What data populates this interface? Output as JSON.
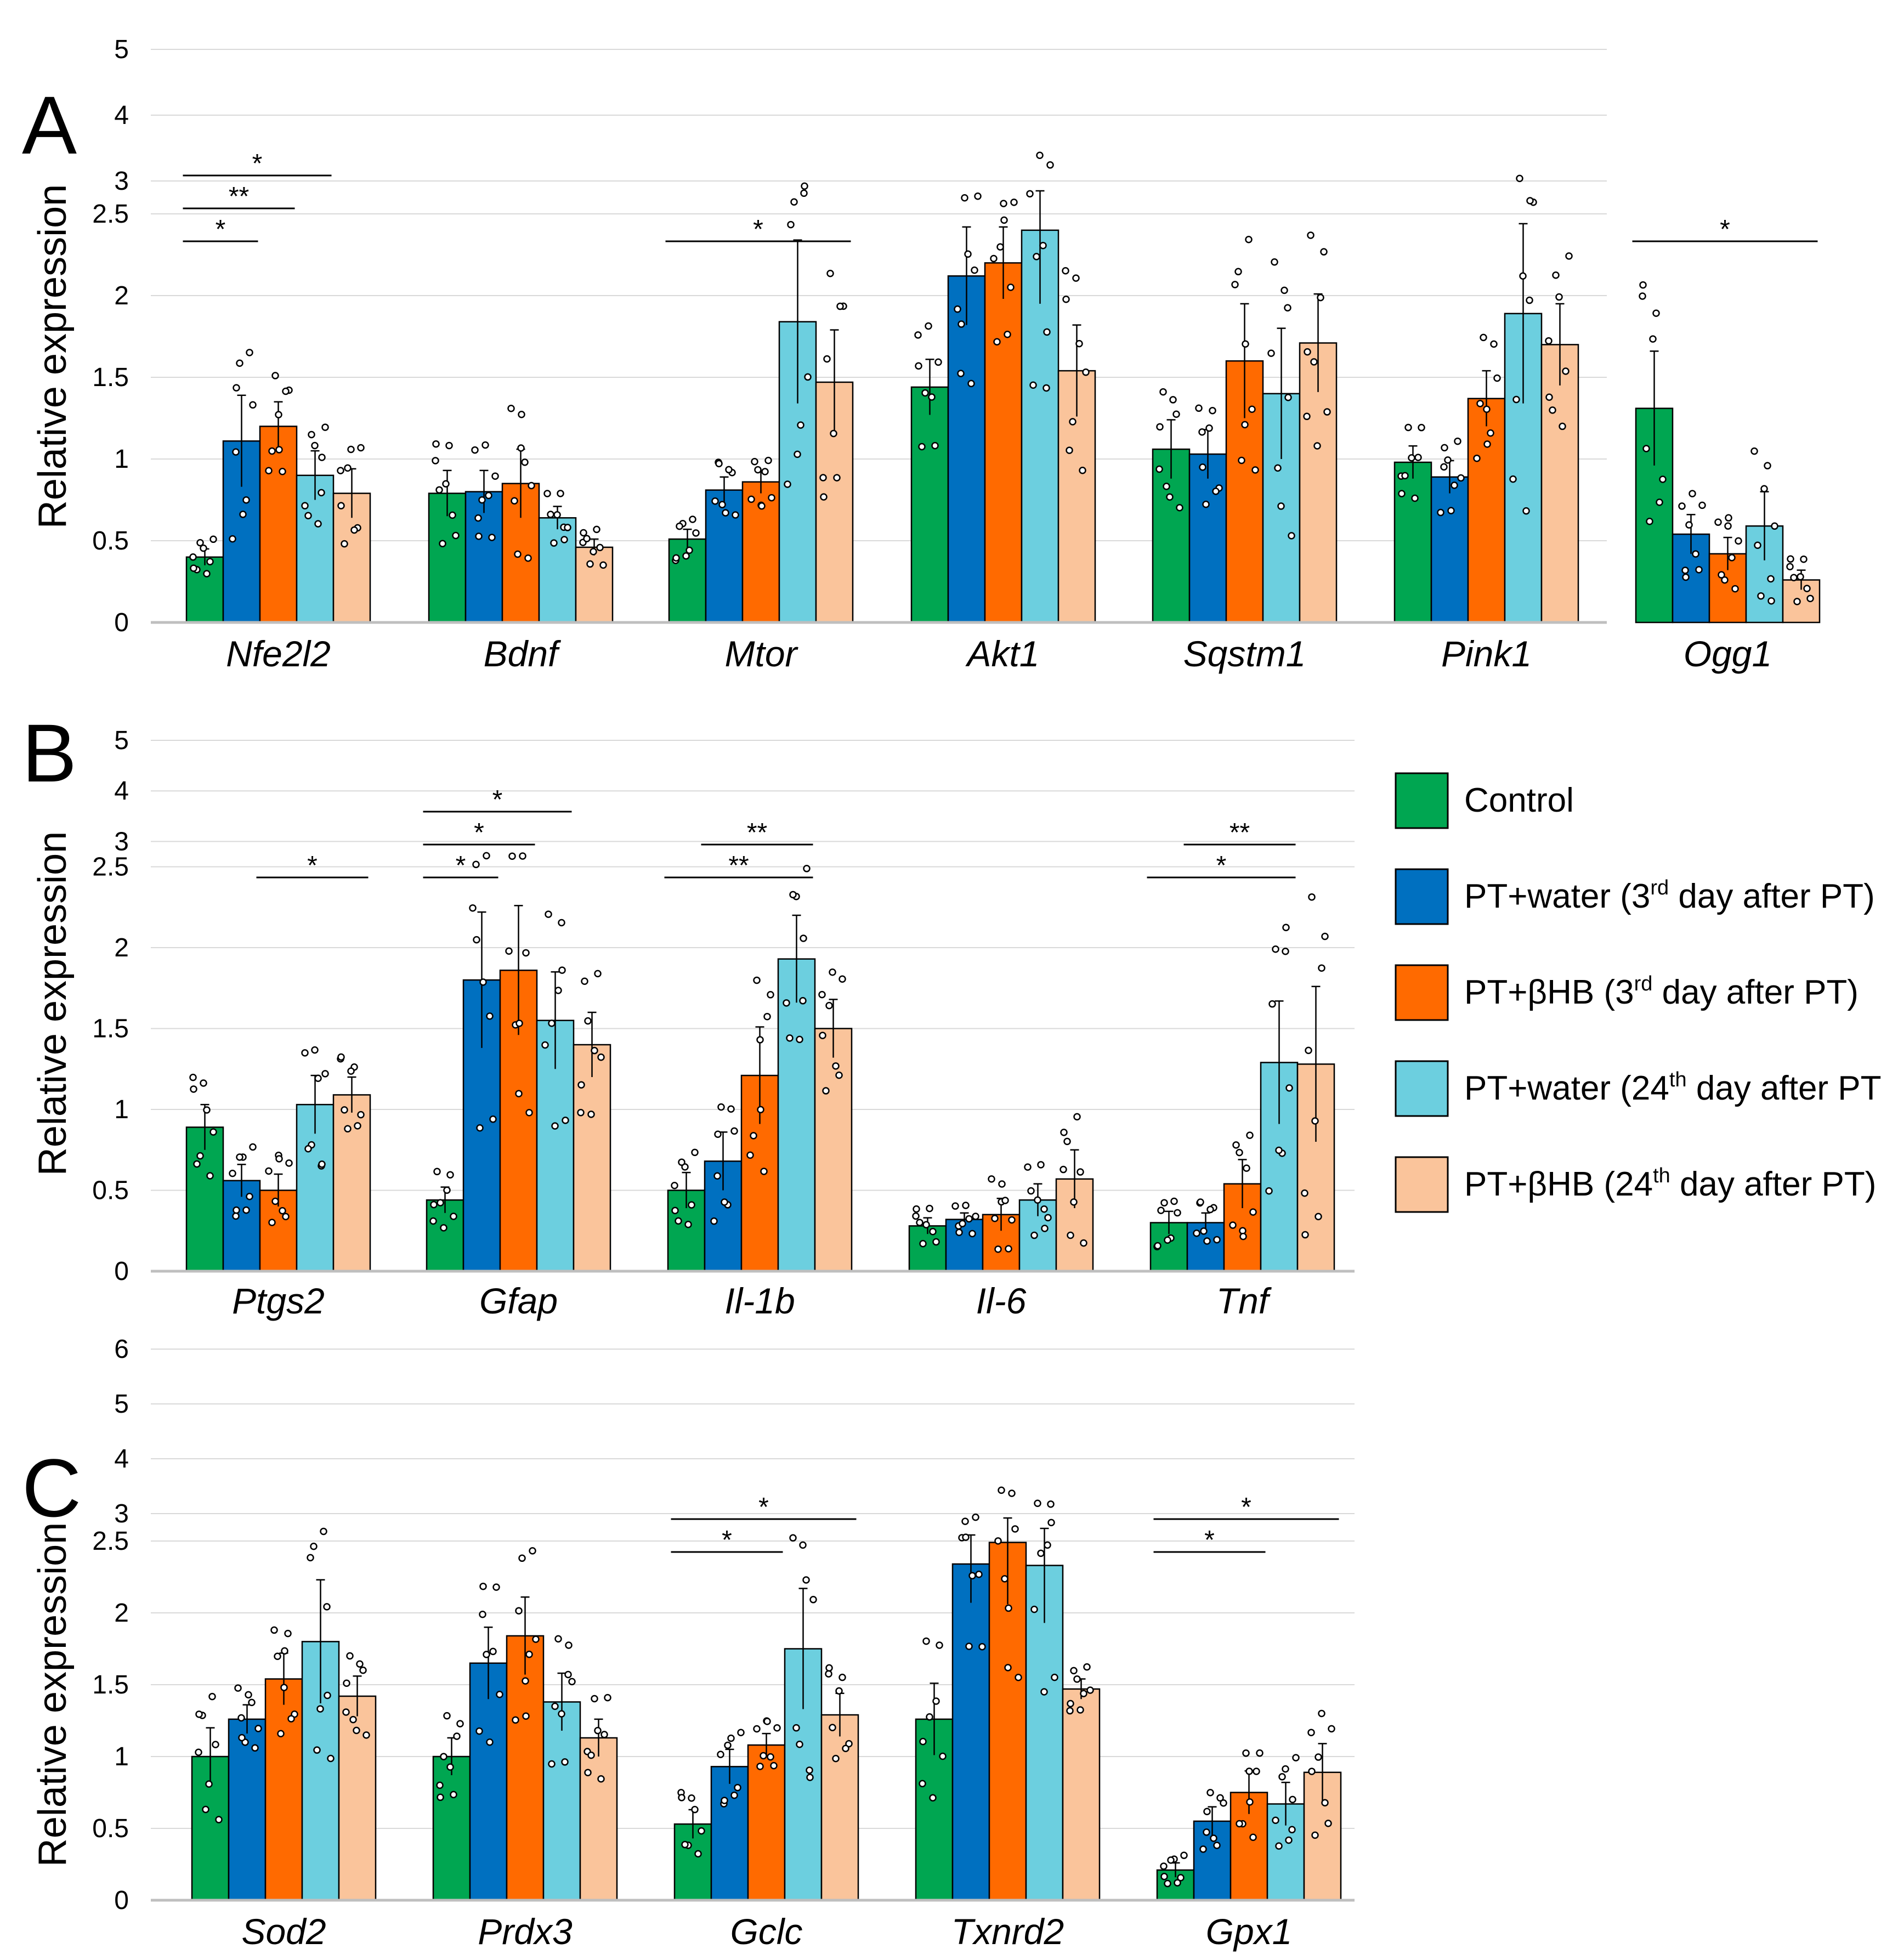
{
  "figure": {
    "legend": [
      {
        "main": "Control",
        "sup": "",
        "post": "",
        "color": "#00a651"
      },
      {
        "main": "PT+water (3",
        "sup": "rd",
        "post": " day after PT)",
        "color": "#0070c0"
      },
      {
        "main": "PT+βHB (3",
        "sup": "rd",
        "post": " day after PT)",
        "color": "#ff6a00"
      },
      {
        "main": "PT+water (24",
        "sup": "th",
        "post": " day after PT)",
        "color": "#6ccfdf"
      },
      {
        "main": "PT+βHB (24",
        "sup": "th",
        "post": " day after PT)",
        "color": "#fac49b"
      }
    ]
  },
  "chart_data": [
    {
      "panel": "A",
      "type": "bar",
      "ylabel": "Relative expression",
      "yticks": [
        "0",
        "0.5",
        "1",
        "1.5",
        "2",
        "2.5",
        "3",
        "4",
        "5"
      ],
      "categories": [
        "Nfe2l2",
        "Bdnf",
        "Mtor",
        "Akt1",
        "Sqstm1",
        "Pink1",
        "Ogg1"
      ],
      "series": [
        {
          "name": "Control",
          "values": [
            0.4,
            0.79,
            0.51,
            1.44,
            1.06,
            0.98,
            1.31
          ],
          "errors": [
            0.05,
            0.14,
            0.06,
            0.17,
            0.18,
            0.1,
            0.35
          ]
        },
        {
          "name": "PT+water (3rd day after PT)",
          "values": [
            1.11,
            0.8,
            0.81,
            2.12,
            1.03,
            0.89,
            0.54
          ],
          "errors": [
            0.28,
            0.13,
            0.08,
            0.3,
            0.15,
            0.1,
            0.12
          ]
        },
        {
          "name": "PT+βHB (3rd day after PT)",
          "values": [
            1.2,
            0.85,
            0.86,
            2.2,
            1.6,
            1.37,
            0.42
          ],
          "errors": [
            0.15,
            0.21,
            0.07,
            0.22,
            0.35,
            0.17,
            0.1
          ]
        },
        {
          "name": "PT+water (24th day after PT)",
          "values": [
            0.9,
            0.64,
            1.84,
            2.4,
            1.4,
            1.89,
            0.59
          ],
          "errors": [
            0.15,
            0.07,
            0.5,
            0.45,
            0.4,
            0.55,
            0.21
          ]
        },
        {
          "name": "PT+βHB (24th day after PT)",
          "values": [
            0.79,
            0.46,
            1.47,
            1.54,
            1.71,
            1.7,
            0.26
          ],
          "errors": [
            0.15,
            0.05,
            0.32,
            0.28,
            0.3,
            0.25,
            0.06
          ]
        }
      ],
      "significance": [
        {
          "label": "*",
          "category": "Nfe2l2",
          "from": 0,
          "to": 1
        },
        {
          "label": "**",
          "category": "Nfe2l2",
          "from": 0,
          "to": 2
        },
        {
          "label": "*",
          "category": "Nfe2l2",
          "from": 0,
          "to": 3
        },
        {
          "label": "*",
          "category": "Mtor",
          "from": 0,
          "to": 4
        },
        {
          "label": "*",
          "category": "Ogg1",
          "from": 0,
          "to": 4
        }
      ]
    },
    {
      "panel": "B",
      "type": "bar",
      "ylabel": "Relative expression",
      "yticks": [
        "0",
        "0.5",
        "1",
        "1.5",
        "2",
        "2.5",
        "3",
        "4",
        "5"
      ],
      "categories": [
        "Ptgs2",
        "Gfap",
        "Il-1b",
        "Il-6",
        "Tnf"
      ],
      "series": [
        {
          "name": "Control",
          "values": [
            0.89,
            0.44,
            0.5,
            0.28,
            0.3
          ],
          "errors": [
            0.14,
            0.08,
            0.11,
            0.05,
            0.07
          ]
        },
        {
          "name": "PT+water (3rd day after PT)",
          "values": [
            0.56,
            1.8,
            0.68,
            0.32,
            0.3
          ],
          "errors": [
            0.1,
            0.42,
            0.18,
            0.04,
            0.06
          ]
        },
        {
          "name": "PT+βHB (3rd day after PT)",
          "values": [
            0.5,
            1.86,
            1.21,
            0.35,
            0.54
          ],
          "errors": [
            0.1,
            0.4,
            0.3,
            0.1,
            0.15
          ]
        },
        {
          "name": "PT+water (24th day after PT)",
          "values": [
            1.03,
            1.55,
            1.93,
            0.44,
            1.29
          ],
          "errors": [
            0.18,
            0.3,
            0.27,
            0.1,
            0.38
          ]
        },
        {
          "name": "PT+βHB (24th day after PT)",
          "values": [
            1.09,
            1.4,
            1.5,
            0.57,
            1.28
          ],
          "errors": [
            0.11,
            0.2,
            0.18,
            0.18,
            0.48
          ]
        }
      ],
      "significance": [
        {
          "label": "*",
          "category": "Ptgs2",
          "from": 2,
          "to": 4
        },
        {
          "label": "*",
          "category": "Gfap",
          "from": 0,
          "to": 1
        },
        {
          "label": "*",
          "category": "Gfap",
          "from": 0,
          "to": 2
        },
        {
          "label": "*",
          "category": "Gfap",
          "from": 0,
          "to": 3
        },
        {
          "label": "**",
          "category": "Il-1b",
          "from": 0,
          "to": 3
        },
        {
          "label": "**",
          "category": "Il-1b",
          "from": 1,
          "to": 3
        },
        {
          "label": "*",
          "category": "Tnf",
          "from": 0,
          "to": 3
        },
        {
          "label": "**",
          "category": "Tnf",
          "from": 1,
          "to": 3
        }
      ]
    },
    {
      "panel": "C",
      "type": "bar",
      "ylabel": "Relative expression",
      "yticks": [
        "0",
        "0.5",
        "1",
        "1.5",
        "2",
        "2.5",
        "3",
        "4",
        "5",
        "6"
      ],
      "categories": [
        "Sod2",
        "Prdx3",
        "Gclc",
        "Txnrd2",
        "Gpx1"
      ],
      "series": [
        {
          "name": "Control",
          "values": [
            1.0,
            1.0,
            0.53,
            1.26,
            0.21
          ],
          "errors": [
            0.2,
            0.13,
            0.1,
            0.25,
            0.05
          ]
        },
        {
          "name": "PT+water (3rd day after PT)",
          "values": [
            1.26,
            1.65,
            0.93,
            2.34,
            0.55
          ],
          "errors": [
            0.1,
            0.25,
            0.12,
            0.27,
            0.1
          ]
        },
        {
          "name": "PT+βHB (3rd day after PT)",
          "values": [
            1.54,
            1.84,
            1.08,
            2.49,
            0.75
          ],
          "errors": [
            0.18,
            0.27,
            0.08,
            0.43,
            0.15
          ]
        },
        {
          "name": "PT+water (24th day after PT)",
          "values": [
            1.8,
            1.38,
            1.75,
            2.33,
            0.67
          ],
          "errors": [
            0.43,
            0.2,
            0.42,
            0.4,
            0.15
          ]
        },
        {
          "name": "PT+βHB (24th day after PT)",
          "values": [
            1.42,
            1.13,
            1.29,
            1.47,
            0.89
          ],
          "errors": [
            0.14,
            0.13,
            0.15,
            0.07,
            0.2
          ]
        }
      ],
      "significance": [
        {
          "label": "*",
          "category": "Gclc",
          "from": 0,
          "to": 2
        },
        {
          "label": "*",
          "category": "Gclc",
          "from": 0,
          "to": 4
        },
        {
          "label": "*",
          "category": "Gpx1",
          "from": 0,
          "to": 2
        },
        {
          "label": "*",
          "category": "Gpx1",
          "from": 0,
          "to": 4
        }
      ]
    }
  ]
}
